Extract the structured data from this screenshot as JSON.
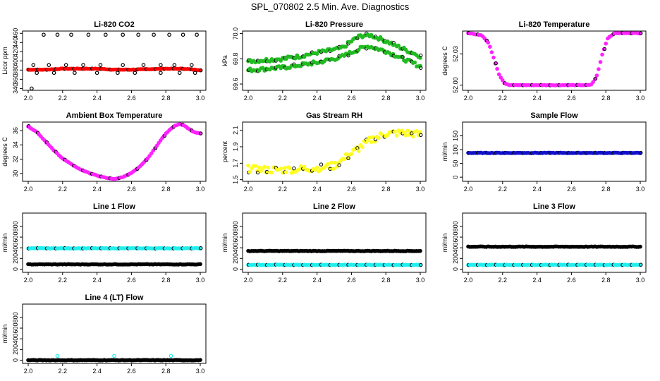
{
  "main_title": "SPL_070802  2.5 Min. Ave. Diagnostics",
  "colors": {
    "red": "#ff0000",
    "green": "#22bb22",
    "magenta": "#ff22ff",
    "yellow": "#ffff22",
    "blue": "#1111cc",
    "cyan": "#22eeee",
    "black": "#000000"
  },
  "chart_data": [
    {
      "type": "scatter",
      "title": "Li-820 CO2",
      "ylabel": "Licor ppm",
      "xlim": [
        2.0,
        3.0
      ],
      "ylim": [
        336,
        465
      ],
      "xticks": [
        "2.0",
        "2.2",
        "2.4",
        "2.6",
        "2.8",
        "3.0"
      ],
      "yticks": [
        "340",
        "360",
        "380",
        "400",
        "420",
        "440",
        "460"
      ],
      "series": [
        {
          "name": "main",
          "color": "red",
          "kind": "line",
          "x": [
            2.0,
            2.1,
            2.2,
            2.3,
            2.4,
            2.5,
            2.6,
            2.7,
            2.8,
            2.9,
            3.0
          ],
          "y": [
            381,
            381,
            383,
            383,
            383,
            381,
            381,
            382,
            383,
            383,
            380
          ]
        },
        {
          "name": "outliers",
          "color": "black",
          "kind": "points",
          "x": [
            2.02,
            2.09,
            2.17,
            2.25,
            2.35,
            2.45,
            2.55,
            2.64,
            2.73,
            2.82,
            2.9,
            2.98,
            2.05,
            2.15,
            2.27,
            2.4,
            2.52,
            2.62,
            2.77,
            2.88,
            2.97,
            2.03,
            2.12,
            2.22,
            2.32,
            2.42,
            2.55,
            2.67,
            2.77,
            2.85,
            2.95
          ],
          "y": [
            340,
            457,
            457,
            457,
            457,
            457,
            457,
            457,
            457,
            457,
            457,
            457,
            374,
            374,
            374,
            374,
            374,
            374,
            374,
            374,
            374,
            391,
            391,
            391,
            391,
            391,
            391,
            391,
            391,
            391,
            391
          ]
        }
      ]
    },
    {
      "type": "scatter",
      "title": "Li-820 Pressure",
      "ylabel": "kPa",
      "xlim": [
        2.0,
        3.0
      ],
      "ylim": [
        69.55,
        70.02
      ],
      "xticks": [
        "2.0",
        "2.2",
        "2.4",
        "2.6",
        "2.8",
        "3.0"
      ],
      "yticks": [
        "69.6",
        "69.8",
        "70.0"
      ],
      "series": [
        {
          "name": "upper",
          "color": "green",
          "kind": "band",
          "x": [
            2.0,
            2.1,
            2.2,
            2.3,
            2.4,
            2.5,
            2.55,
            2.6,
            2.65,
            2.7,
            2.75,
            2.8,
            2.85,
            2.9,
            2.95,
            3.0
          ],
          "y": [
            69.78,
            69.79,
            69.8,
            69.82,
            69.85,
            69.87,
            69.89,
            69.94,
            69.98,
            69.99,
            69.97,
            69.94,
            69.91,
            69.88,
            69.85,
            69.82
          ]
        },
        {
          "name": "lower",
          "color": "green",
          "kind": "band",
          "x": [
            2.0,
            2.1,
            2.2,
            2.3,
            2.4,
            2.5,
            2.55,
            2.6,
            2.65,
            2.7,
            2.75,
            2.8,
            2.85,
            2.9,
            2.95,
            3.0
          ],
          "y": [
            69.71,
            69.72,
            69.73,
            69.75,
            69.77,
            69.8,
            69.82,
            69.85,
            69.88,
            69.9,
            69.88,
            69.86,
            69.83,
            69.8,
            69.77,
            69.74
          ]
        }
      ]
    },
    {
      "type": "scatter",
      "title": "Li-820 Temperature",
      "ylabel": "degrees C",
      "xlim": [
        2.0,
        3.0
      ],
      "ylim": [
        51.995,
        52.052
      ],
      "xticks": [
        "2.0",
        "2.2",
        "2.4",
        "2.6",
        "2.8",
        "3.0"
      ],
      "yticks": [
        "52.00",
        "52.03"
      ],
      "series": [
        {
          "name": "temp",
          "color": "magenta",
          "kind": "line",
          "x": [
            2.0,
            2.08,
            2.12,
            2.15,
            2.18,
            2.21,
            2.24,
            2.3,
            2.4,
            2.5,
            2.6,
            2.7,
            2.72,
            2.75,
            2.78,
            2.81,
            2.85,
            2.9,
            3.0
          ],
          "y": [
            52.05,
            52.048,
            52.04,
            52.025,
            52.01,
            52.002,
            52.0,
            52.0,
            52.0,
            52.0,
            52.0,
            52.0,
            52.001,
            52.01,
            52.03,
            52.045,
            52.05,
            52.05,
            52.05
          ]
        }
      ]
    },
    {
      "type": "scatter",
      "title": "Ambient Box Temperature",
      "ylabel": "degrees C",
      "xlim": [
        2.0,
        3.0
      ],
      "ylim": [
        28.9,
        37.2
      ],
      "xticks": [
        "2.0",
        "2.2",
        "2.4",
        "2.6",
        "2.8",
        "3.0"
      ],
      "yticks": [
        "30",
        "32",
        "34",
        "36"
      ],
      "series": [
        {
          "name": "temp",
          "color": "magenta",
          "kind": "line",
          "x": [
            2.0,
            2.05,
            2.1,
            2.15,
            2.2,
            2.25,
            2.3,
            2.35,
            2.4,
            2.45,
            2.5,
            2.55,
            2.6,
            2.65,
            2.7,
            2.75,
            2.8,
            2.85,
            2.88,
            2.9,
            2.93,
            2.96,
            3.0
          ],
          "y": [
            36.6,
            35.8,
            34.5,
            33.2,
            32.1,
            31.3,
            30.6,
            30.1,
            29.7,
            29.4,
            29.2,
            29.5,
            30.1,
            31.0,
            32.3,
            34.0,
            35.6,
            36.7,
            36.9,
            36.8,
            36.3,
            35.8,
            35.6
          ]
        }
      ]
    },
    {
      "type": "scatter",
      "title": "Gas Stream RH",
      "ylabel": "percent",
      "xlim": [
        2.0,
        3.0
      ],
      "ylim": [
        1.48,
        2.2
      ],
      "xticks": [
        "2.0",
        "2.2",
        "2.4",
        "2.6",
        "2.8",
        "3.0"
      ],
      "yticks": [
        "1.5",
        "1.7",
        "1.9",
        "2.1"
      ],
      "series": [
        {
          "name": "rh",
          "color": "yellow",
          "kind": "noisy",
          "x": [
            2.0,
            2.1,
            2.2,
            2.3,
            2.4,
            2.5,
            2.6,
            2.7,
            2.8,
            2.9,
            3.0
          ],
          "y": [
            1.63,
            1.62,
            1.62,
            1.63,
            1.64,
            1.67,
            1.82,
            1.97,
            2.06,
            2.07,
            2.05
          ]
        }
      ]
    },
    {
      "type": "scatter",
      "title": "Sample Flow",
      "ylabel": "ml/min",
      "xlim": [
        2.0,
        3.0
      ],
      "ylim": [
        -15,
        200
      ],
      "xticks": [
        "2.0",
        "2.2",
        "2.4",
        "2.6",
        "2.8",
        "3.0"
      ],
      "yticks": [
        "0",
        "50",
        "100",
        "150"
      ],
      "series": [
        {
          "name": "flow",
          "color": "blue",
          "kind": "line",
          "x": [
            2.0,
            3.0
          ],
          "y": [
            88,
            88
          ]
        }
      ]
    },
    {
      "type": "scatter",
      "title": "Line 1 Flow",
      "ylabel": "ml/min",
      "xlim": [
        2.0,
        3.0
      ],
      "ylim": [
        -60,
        1050
      ],
      "xticks": [
        "2.0",
        "2.2",
        "2.4",
        "2.6",
        "2.8",
        "3.0"
      ],
      "yticks": [
        "0",
        "200",
        "400",
        "600",
        "800"
      ],
      "series": [
        {
          "name": "cyan",
          "color": "cyan",
          "kind": "line",
          "x": [
            2.0,
            3.0
          ],
          "y": [
            390,
            390
          ]
        },
        {
          "name": "black",
          "color": "black",
          "kind": "line",
          "x": [
            2.0,
            3.0
          ],
          "y": [
            90,
            90
          ]
        }
      ]
    },
    {
      "type": "scatter",
      "title": "Line 2 Flow",
      "ylabel": "ml/min",
      "xlim": [
        2.0,
        3.0
      ],
      "ylim": [
        -60,
        1050
      ],
      "xticks": [
        "2.0",
        "2.2",
        "2.4",
        "2.6",
        "2.8",
        "3.0"
      ],
      "yticks": [
        "0",
        "200",
        "400",
        "600",
        "800"
      ],
      "series": [
        {
          "name": "black",
          "color": "black",
          "kind": "line",
          "x": [
            2.0,
            3.0
          ],
          "y": [
            340,
            340
          ]
        },
        {
          "name": "cyan",
          "color": "cyan",
          "kind": "line",
          "x": [
            2.0,
            3.0
          ],
          "y": [
            80,
            80
          ]
        }
      ]
    },
    {
      "type": "scatter",
      "title": "Line 3 Flow",
      "ylabel": "ml/min",
      "xlim": [
        2.0,
        3.0
      ],
      "ylim": [
        -60,
        1050
      ],
      "xticks": [
        "2.0",
        "2.2",
        "2.4",
        "2.6",
        "2.8",
        "3.0"
      ],
      "yticks": [
        "0",
        "200",
        "400",
        "600",
        "800"
      ],
      "series": [
        {
          "name": "black",
          "color": "black",
          "kind": "line",
          "x": [
            2.0,
            3.0
          ],
          "y": [
            420,
            420
          ]
        },
        {
          "name": "cyan",
          "color": "cyan",
          "kind": "line",
          "x": [
            2.0,
            3.0
          ],
          "y": [
            80,
            80
          ]
        }
      ]
    },
    {
      "type": "scatter",
      "title": "Line 4 (LT) Flow",
      "ylabel": "ml/min",
      "xlim": [
        2.0,
        3.0
      ],
      "ylim": [
        -60,
        1050
      ],
      "xticks": [
        "2.0",
        "2.2",
        "2.4",
        "2.6",
        "2.8",
        "3.0"
      ],
      "yticks": [
        "0",
        "200",
        "400",
        "600",
        "800"
      ],
      "series": [
        {
          "name": "flow",
          "color": "black",
          "kind": "line",
          "x": [
            2.0,
            3.0
          ],
          "y": [
            0,
            0
          ]
        },
        {
          "name": "cyan-spikes",
          "color": "cyan",
          "kind": "points",
          "x": [
            2.17,
            2.5,
            2.83
          ],
          "y": [
            80,
            80,
            80
          ]
        }
      ]
    }
  ]
}
